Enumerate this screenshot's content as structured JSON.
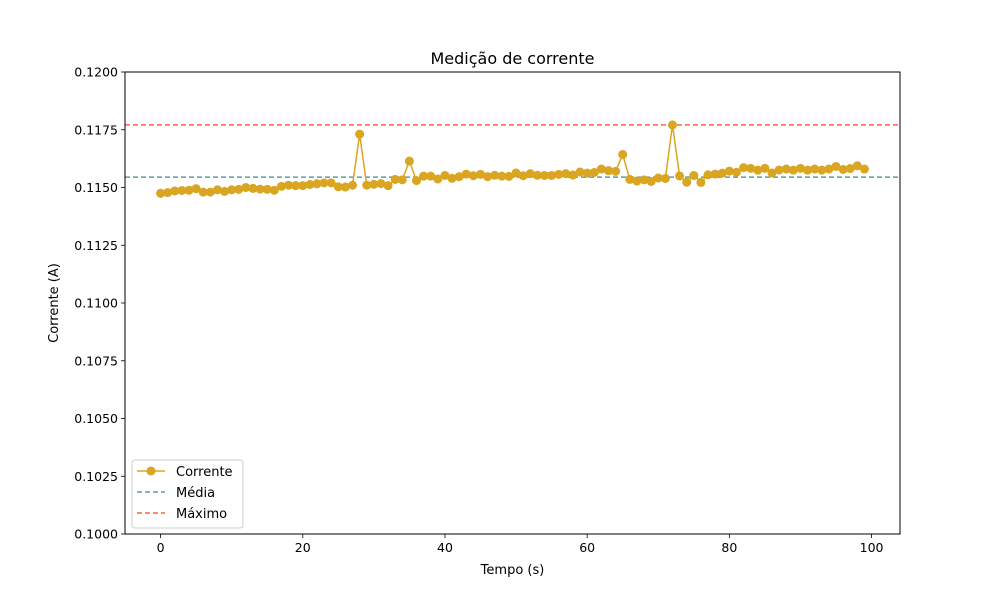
{
  "chart_data": {
    "type": "line",
    "title": "Medição de corrente",
    "xlabel": "Tempo (s)",
    "ylabel": "Corrente (A)",
    "xlim": [
      -5,
      104
    ],
    "ylim": [
      0.1,
      0.12
    ],
    "xticks": [
      0,
      20,
      40,
      60,
      80,
      100
    ],
    "xtick_labels": [
      "0",
      "20",
      "40",
      "60",
      "80",
      "100"
    ],
    "yticks": [
      0.1,
      0.1025,
      0.105,
      0.1075,
      0.11,
      0.1125,
      0.115,
      0.1175,
      0.12
    ],
    "ytick_labels": [
      "0.1000",
      "0.1025",
      "0.1050",
      "0.1075",
      "0.1100",
      "0.1125",
      "0.1150",
      "0.1175",
      "0.1200"
    ],
    "grid": false,
    "legend_position": "lower-left",
    "series": [
      {
        "name": "Corrente",
        "color": "#DAA520",
        "style": "line-with-markers",
        "x": [
          0,
          1,
          2,
          3,
          4,
          5,
          6,
          7,
          8,
          9,
          10,
          11,
          12,
          13,
          14,
          15,
          16,
          17,
          18,
          19,
          20,
          21,
          22,
          23,
          24,
          25,
          26,
          27,
          28,
          29,
          30,
          31,
          32,
          33,
          34,
          35,
          36,
          37,
          38,
          39,
          40,
          41,
          42,
          43,
          44,
          45,
          46,
          47,
          48,
          49,
          50,
          51,
          52,
          53,
          54,
          55,
          56,
          57,
          58,
          59,
          60,
          61,
          62,
          63,
          64,
          65,
          66,
          67,
          68,
          69,
          70,
          71,
          72,
          73,
          74,
          75,
          76,
          77,
          78,
          79,
          80,
          81,
          82,
          83,
          84,
          85,
          86,
          87,
          88,
          89,
          90,
          91,
          92,
          93,
          94,
          95,
          96,
          97,
          98,
          99
        ],
        "y": [
          0.11475,
          0.11478,
          0.11485,
          0.11487,
          0.11488,
          0.11495,
          0.1148,
          0.1148,
          0.1149,
          0.11483,
          0.1149,
          0.11492,
          0.115,
          0.11496,
          0.11493,
          0.11492,
          0.11488,
          0.11505,
          0.1151,
          0.11508,
          0.11508,
          0.11513,
          0.11516,
          0.1152,
          0.1152,
          0.11503,
          0.11502,
          0.1151,
          0.11731,
          0.1151,
          0.11514,
          0.11517,
          0.11508,
          0.11535,
          0.11533,
          0.11614,
          0.1153,
          0.11549,
          0.11549,
          0.11537,
          0.11552,
          0.1154,
          0.11547,
          0.11558,
          0.11551,
          0.11557,
          0.11547,
          0.11553,
          0.11549,
          0.11548,
          0.11563,
          0.11551,
          0.1156,
          0.11553,
          0.11552,
          0.11552,
          0.11557,
          0.1156,
          0.11554,
          0.11567,
          0.11562,
          0.11565,
          0.1158,
          0.11573,
          0.1157,
          0.11643,
          0.11535,
          0.11528,
          0.11533,
          0.11526,
          0.11541,
          0.11539,
          0.11771,
          0.1155,
          0.11523,
          0.11552,
          0.11522,
          0.11555,
          0.11558,
          0.11562,
          0.11571,
          0.11566,
          0.11586,
          0.11583,
          0.11575,
          0.11583,
          0.11563,
          0.11576,
          0.1158,
          0.11575,
          0.11583,
          0.11575,
          0.1158,
          0.11575,
          0.1158,
          0.11591,
          0.11578,
          0.11582,
          0.11594,
          0.1158
        ]
      },
      {
        "name": "Média",
        "color": "#5F9EA0",
        "style": "dashed-horizontal",
        "value": 0.11545
      },
      {
        "name": "Máximo",
        "color": "#FF6347",
        "style": "dashed-horizontal",
        "value": 0.11771
      }
    ]
  }
}
